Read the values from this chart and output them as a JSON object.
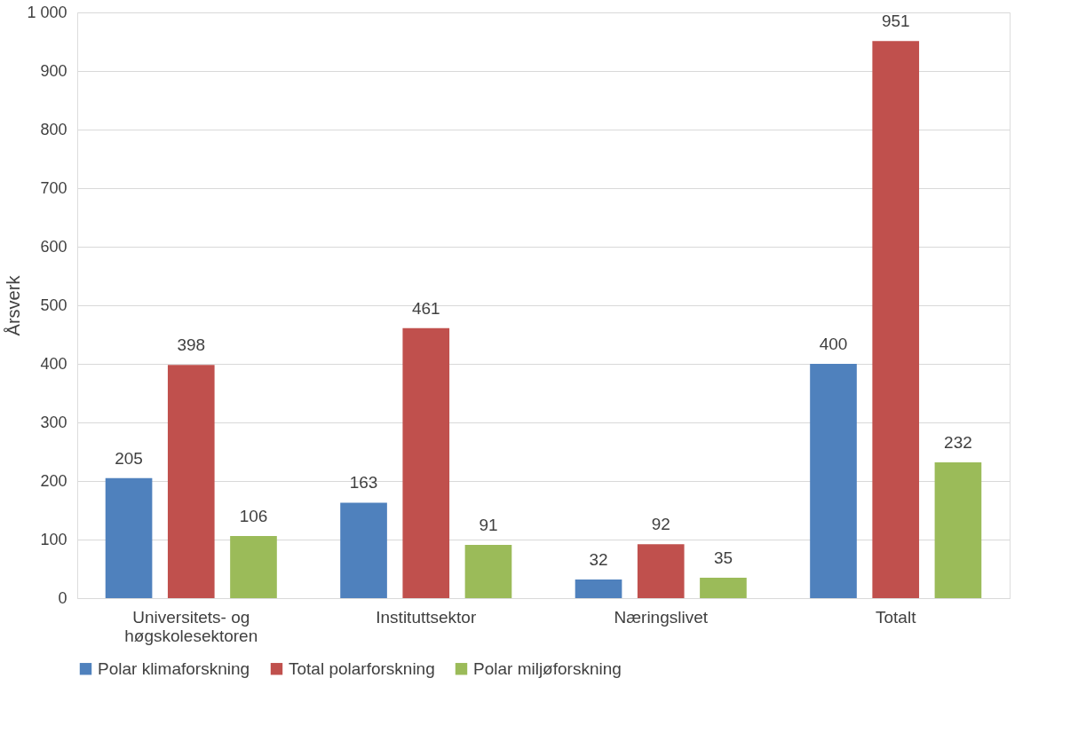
{
  "chart_data": {
    "type": "bar",
    "ylabel": "Årsverk",
    "categories": [
      "Universitets- og høgskolesektoren",
      "Instituttsektor",
      "Næringslivet",
      "Totalt"
    ],
    "series": [
      {
        "name": "Polar klimaforskning",
        "color": "#4f81bd",
        "values": [
          205,
          163,
          32,
          400
        ]
      },
      {
        "name": "Total polarforskning",
        "color": "#c0504d",
        "values": [
          398,
          461,
          92,
          951
        ]
      },
      {
        "name": "Polar miljøforskning",
        "color": "#9bbb59",
        "values": [
          106,
          91,
          35,
          232
        ]
      }
    ],
    "ylim": [
      0,
      1000
    ],
    "yticks": [
      0,
      100,
      200,
      300,
      400,
      500,
      600,
      700,
      800,
      900,
      {
        "value": 1000,
        "label": "1 000"
      }
    ],
    "grid": "y",
    "legend": "bottom",
    "data_labels": true
  }
}
